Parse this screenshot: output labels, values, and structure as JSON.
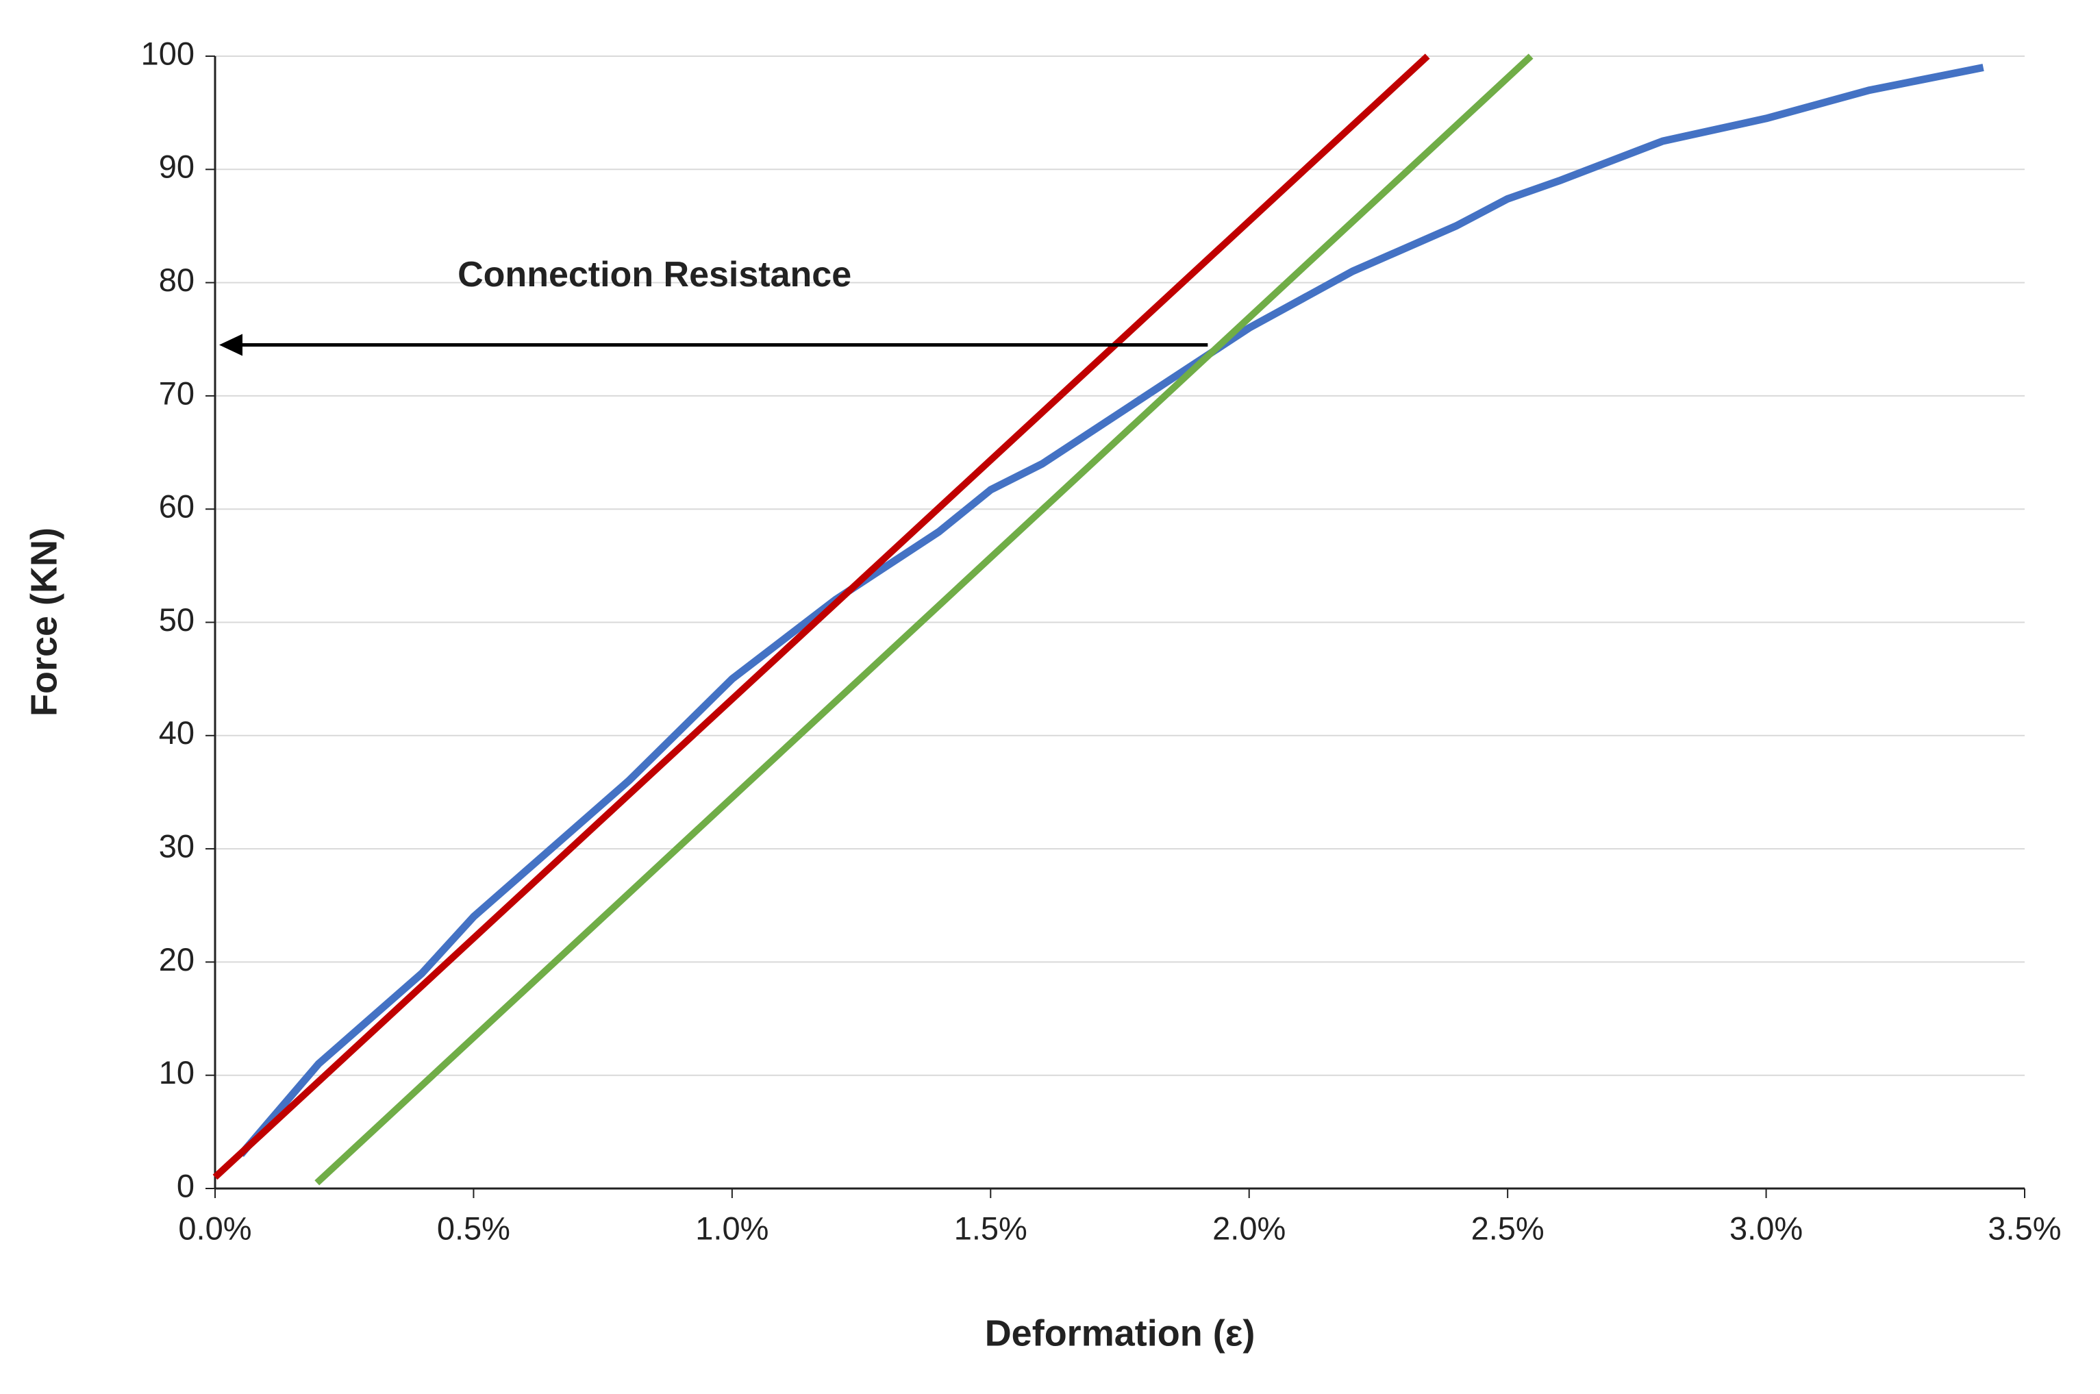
{
  "chart_data": {
    "type": "line",
    "x_label": "Deformation (ε)",
    "y_label": "Force (KN)",
    "xlim": [
      0,
      3.5
    ],
    "ylim": [
      0,
      100
    ],
    "xticks": [
      {
        "value": 0,
        "label": "0.0%"
      },
      {
        "value": 0.5,
        "label": "0.5%"
      },
      {
        "value": 1,
        "label": "1.0%"
      },
      {
        "value": 1.5,
        "label": "1.5%"
      },
      {
        "value": 2,
        "label": "2.0%"
      },
      {
        "value": 2.5,
        "label": "2.5%"
      },
      {
        "value": 3,
        "label": "3.0%"
      },
      {
        "value": 3.5,
        "label": "3.5%"
      }
    ],
    "yticks": [
      0,
      10,
      20,
      30,
      40,
      50,
      60,
      70,
      80,
      90,
      100
    ],
    "grid": true,
    "series": [
      {
        "color": "#4472c4",
        "x": [
          0.05,
          0.2,
          0.4,
          0.5,
          0.6,
          0.8,
          1.0,
          1.2,
          1.4,
          1.5,
          1.6,
          1.8,
          2.0,
          2.2,
          2.4,
          2.5,
          2.6,
          2.8,
          3.0,
          3.2,
          3.42
        ],
        "values": [
          3,
          11,
          19,
          24,
          28,
          36,
          45,
          52,
          58,
          61.7,
          64,
          70,
          76,
          81,
          85,
          87.4,
          89,
          92.5,
          94.5,
          97,
          99
        ]
      },
      {
        "color": "#c00000",
        "x": [
          0,
          2.345
        ],
        "values": [
          1,
          100
        ]
      },
      {
        "color": "#70ad47",
        "x": [
          0.197,
          2.545
        ],
        "values": [
          0.5,
          100
        ]
      }
    ],
    "annotation": {
      "text": "Connection Resistance",
      "x": [
        1.92,
        0
      ],
      "y": 74.5,
      "text_x": 0.85,
      "text_y": 80.5
    }
  }
}
